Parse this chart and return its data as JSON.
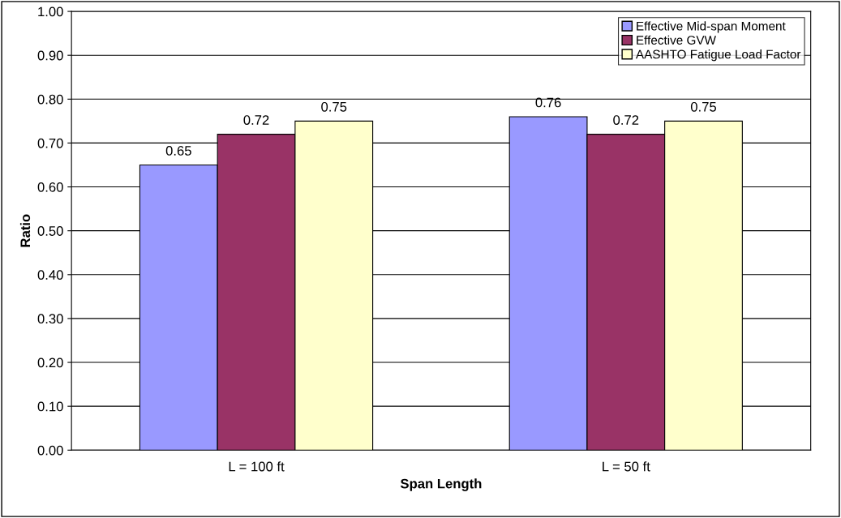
{
  "chart_data": {
    "type": "bar",
    "xlabel": "Span Length",
    "ylabel": "Ratio",
    "categories": [
      "L = 100 ft",
      "L = 50 ft"
    ],
    "series": [
      {
        "name": "Effective Mid-span Moment",
        "color": "#9999ff",
        "values": [
          0.65,
          0.76
        ]
      },
      {
        "name": "Effective GVW",
        "color": "#993366",
        "values": [
          0.72,
          0.72
        ]
      },
      {
        "name": "AASHTO Fatigue Load Factor",
        "color": "#ffffcc",
        "values": [
          0.75,
          0.75
        ]
      }
    ],
    "value_labels": [
      [
        "0.65",
        "0.76"
      ],
      [
        "0.72",
        "0.72"
      ],
      [
        "0.75",
        "0.75"
      ]
    ],
    "ylim": [
      0,
      1
    ],
    "yticks": [
      {
        "value": 0,
        "label": "0.00"
      },
      {
        "value": 0.1,
        "label": "0.10"
      },
      {
        "value": 0.2,
        "label": "0.20"
      },
      {
        "value": 0.3,
        "label": "0.30"
      },
      {
        "value": 0.4,
        "label": "0.40"
      },
      {
        "value": 0.5,
        "label": "0.50"
      },
      {
        "value": 0.6,
        "label": "0.60"
      },
      {
        "value": 0.7,
        "label": "0.70"
      },
      {
        "value": 0.8,
        "label": "0.80"
      },
      {
        "value": 0.9,
        "label": "0.90"
      },
      {
        "value": 1,
        "label": "1.00"
      }
    ],
    "grid": "y",
    "legend": "top right"
  }
}
